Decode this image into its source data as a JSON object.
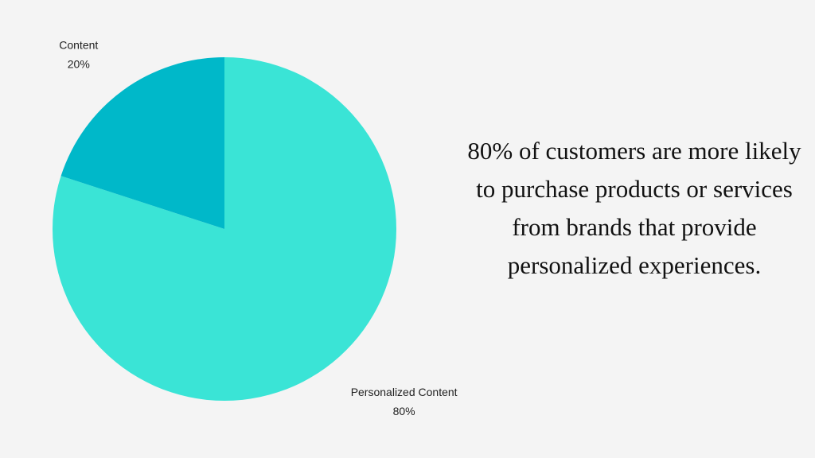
{
  "chart_data": {
    "type": "pie",
    "categories": [
      "Personalized Content",
      "Content"
    ],
    "values": [
      80,
      20
    ],
    "value_labels": [
      "80%",
      "20%"
    ],
    "colors": [
      "#3ae4d6",
      "#00b8c9"
    ],
    "annotation": "80% of customers are more likely to purchase products or services from brands that provide personalized experiences."
  }
}
